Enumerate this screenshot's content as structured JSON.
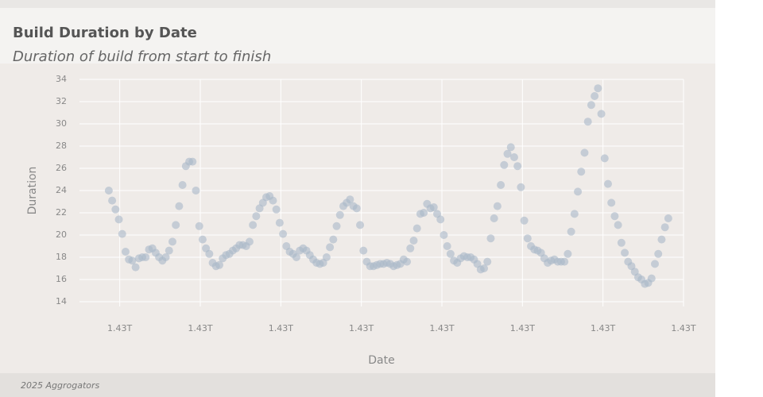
{
  "header": {
    "title": "Build Duration by Date",
    "subtitle": "Duration of build from start to finish"
  },
  "footer": {
    "text": "2025 Aggrogators"
  },
  "chart_data": {
    "type": "scatter",
    "x_label": "Date",
    "y_label": "Duration",
    "color": "#a9b8c8",
    "grid": true,
    "xlim": [
      1429750000000,
      1433500000000
    ],
    "xticks": [
      {
        "value": 1430000000000,
        "label": "1.43T"
      },
      {
        "value": 1430500000000,
        "label": "1.43T"
      },
      {
        "value": 1431000000000,
        "label": "1.43T"
      },
      {
        "value": 1431500000000,
        "label": "1.43T"
      },
      {
        "value": 1432000000000,
        "label": "1.43T"
      },
      {
        "value": 1432500000000,
        "label": "1.43T"
      },
      {
        "value": 1433000000000,
        "label": "1.43T"
      },
      {
        "value": 1433500000000,
        "label": "1.43T"
      }
    ],
    "ylim": [
      14,
      34
    ],
    "yticks": [
      14,
      16,
      18,
      20,
      22,
      24,
      26,
      28,
      30,
      32,
      34
    ],
    "x": [
      1429932000000,
      1429952800000,
      1429973600000,
      1429994400000,
      1430015200000,
      1430036000000,
      1430056800000,
      1430077600000,
      1430098400000,
      1430119200000,
      1430140000000,
      1430160800000,
      1430181600000,
      1430202400000,
      1430223200000,
      1430244000000,
      1430264800000,
      1430285600000,
      1430306400000,
      1430327200000,
      1430348000000,
      1430368800000,
      1430389600000,
      1430410400000,
      1430431200000,
      1430452000000,
      1430472800000,
      1430493600000,
      1430514400000,
      1430535200000,
      1430556000000,
      1430576800000,
      1430597600000,
      1430618400000,
      1430639200000,
      1430660000000,
      1430680800000,
      1430701600000,
      1430722400000,
      1430743200000,
      1430764000000,
      1430784800000,
      1430805600000,
      1430826400000,
      1430847200000,
      1430868000000,
      1430888800000,
      1430909600000,
      1430930400000,
      1430951200000,
      1430972000000,
      1430992800000,
      1431013600000,
      1431034400000,
      1431055200000,
      1431076000000,
      1431096800000,
      1431117600000,
      1431138400000,
      1431159200000,
      1431180000000,
      1431200800000,
      1431221600000,
      1431242400000,
      1431263200000,
      1431284000000,
      1431304800000,
      1431325600000,
      1431346400000,
      1431367200000,
      1431388000000,
      1431408800000,
      1431429600000,
      1431450400000,
      1431471200000,
      1431492000000,
      1431512800000,
      1431533600000,
      1431554400000,
      1431575200000,
      1431596000000,
      1431616800000,
      1431637600000,
      1431658400000,
      1431679200000,
      1431700000000,
      1431720800000,
      1431741600000,
      1431762400000,
      1431783200000,
      1431804000000,
      1431824800000,
      1431845600000,
      1431866400000,
      1431887200000,
      1431908000000,
      1431928800000,
      1431949600000,
      1431970400000,
      1431991200000,
      1432012000000,
      1432032800000,
      1432053600000,
      1432074400000,
      1432095200000,
      1432116000000,
      1432136800000,
      1432157600000,
      1432178400000,
      1432199200000,
      1432220000000,
      1432240800000,
      1432261600000,
      1432282400000,
      1432303200000,
      1432324000000,
      1432344800000,
      1432365600000,
      1432386400000,
      1432407200000,
      1432428000000,
      1432448800000,
      1432469600000,
      1432490400000,
      1432511200000,
      1432532000000,
      1432552800000,
      1432573600000,
      1432594400000,
      1432615200000,
      1432636000000,
      1432656800000,
      1432677600000,
      1432698400000,
      1432719200000,
      1432740000000,
      1432760800000,
      1432781600000,
      1432802400000,
      1432823200000,
      1432844000000,
      1432864800000,
      1432885600000,
      1432906400000,
      1432927200000,
      1432948000000,
      1432968800000,
      1432989600000,
      1433010400000,
      1433031200000,
      1433052000000,
      1433072800000,
      1433093600000,
      1433114400000,
      1433135200000,
      1433156000000,
      1433176800000,
      1433197600000,
      1433218400000,
      1433239200000,
      1433260000000,
      1433280800000,
      1433301600000,
      1433322400000,
      1433343200000,
      1433364000000,
      1433384800000,
      1433405600000
    ],
    "values": [
      24.0,
      23.1,
      22.3,
      21.4,
      20.1,
      18.5,
      17.8,
      17.7,
      17.1,
      17.9,
      18.0,
      18.0,
      18.7,
      18.8,
      18.4,
      18.0,
      17.7,
      18.0,
      18.6,
      19.4,
      20.9,
      22.6,
      24.5,
      26.2,
      26.6,
      26.6,
      24.0,
      20.8,
      19.6,
      18.8,
      18.3,
      17.5,
      17.2,
      17.3,
      17.9,
      18.2,
      18.3,
      18.6,
      18.8,
      19.1,
      19.1,
      19.0,
      19.4,
      20.9,
      21.7,
      22.4,
      22.9,
      23.4,
      23.5,
      23.1,
      22.3,
      21.1,
      20.1,
      19.0,
      18.5,
      18.3,
      18.0,
      18.6,
      18.8,
      18.6,
      18.2,
      17.8,
      17.5,
      17.4,
      17.5,
      18.0,
      18.9,
      19.6,
      20.8,
      21.8,
      22.6,
      22.9,
      23.2,
      22.6,
      22.4,
      20.9,
      18.6,
      17.6,
      17.2,
      17.2,
      17.3,
      17.4,
      17.4,
      17.5,
      17.4,
      17.2,
      17.3,
      17.4,
      17.8,
      17.6,
      18.8,
      19.5,
      20.6,
      21.9,
      22.0,
      22.8,
      22.4,
      22.5,
      21.9,
      21.4,
      20.0,
      19.0,
      18.3,
      17.7,
      17.5,
      17.9,
      18.1,
      18.0,
      18.0,
      17.8,
      17.4,
      16.9,
      17.0,
      17.6,
      19.7,
      21.5,
      22.6,
      24.5,
      26.3,
      27.3,
      27.9,
      27.0,
      26.2,
      24.3,
      21.3,
      19.7,
      19.0,
      18.7,
      18.6,
      18.4,
      17.9,
      17.5,
      17.7,
      17.8,
      17.6,
      17.6,
      17.6,
      18.3,
      20.3,
      21.9,
      23.9,
      25.7,
      27.4,
      30.2,
      31.7,
      32.5,
      33.2,
      30.9,
      26.9,
      24.6,
      22.9,
      21.7,
      20.9,
      19.3,
      18.4,
      17.6,
      17.2,
      16.7,
      16.2,
      16.0,
      15.6,
      15.7,
      16.1,
      17.4,
      18.3,
      19.6,
      20.7,
      21.5
    ]
  }
}
